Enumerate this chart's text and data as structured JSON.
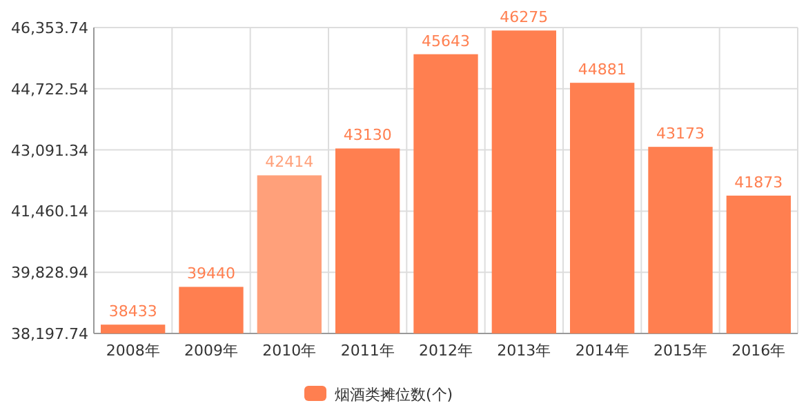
{
  "chart_data": {
    "type": "bar",
    "categories": [
      "2008年",
      "2009年",
      "2010年",
      "2011年",
      "2012年",
      "2013年",
      "2014年",
      "2015年",
      "2016年"
    ],
    "series": [
      {
        "name": "烟酒类摊位数(个)",
        "color": "#ff7f50",
        "colors": [
          "#ff7f50",
          "#ff7f50",
          "#ffa07a",
          "#ff7f50",
          "#ff7f50",
          "#ff7f50",
          "#ff7f50",
          "#ff7f50",
          "#ff7f50"
        ],
        "values": [
          38433,
          39440,
          42414,
          43130,
          45643,
          46275,
          44881,
          43173,
          41873
        ]
      }
    ],
    "ylim": [
      38197.74,
      46353.74
    ],
    "yticks": [
      {
        "value": 38197.74,
        "label": "38,197.74"
      },
      {
        "value": 39828.94,
        "label": "39,828.94"
      },
      {
        "value": 41460.14,
        "label": "41,460.14"
      },
      {
        "value": 43091.34,
        "label": "43,091.34"
      },
      {
        "value": 44722.54,
        "label": "44,722.54"
      },
      {
        "value": 46353.74,
        "label": "46,353.74"
      }
    ],
    "grid": true,
    "data_labels": true,
    "legend": "bottom"
  }
}
